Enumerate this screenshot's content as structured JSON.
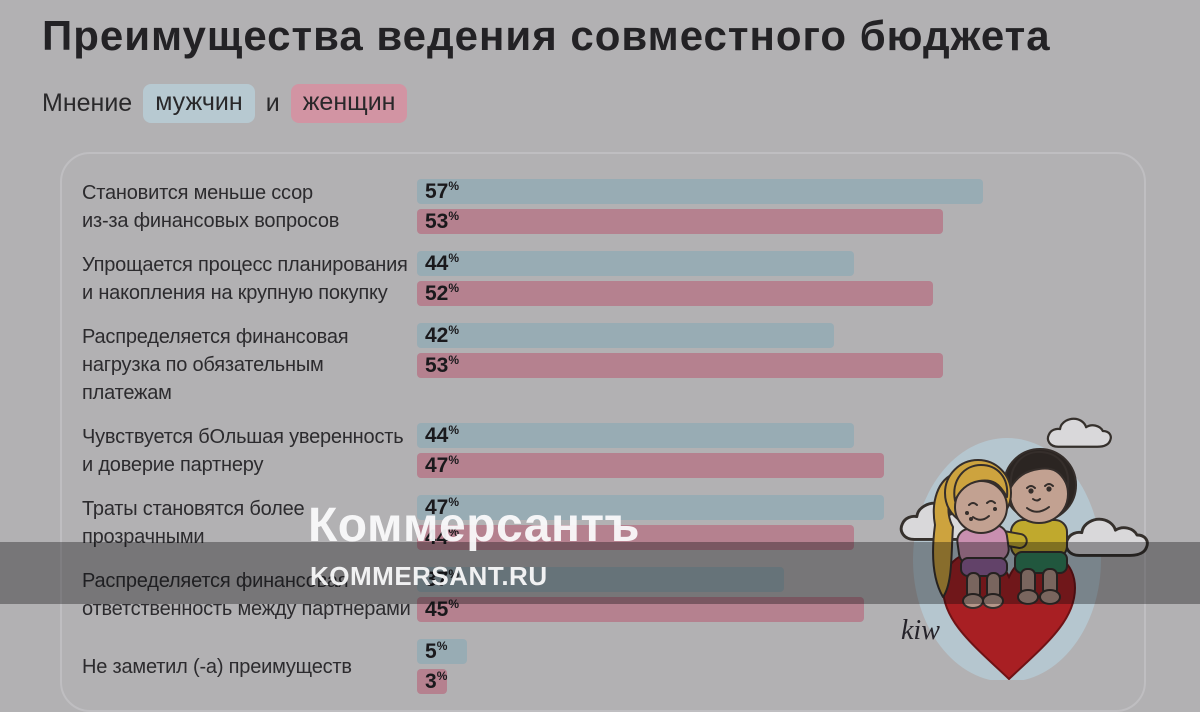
{
  "header": {
    "title": "Преимущества ведения совместного бюджета",
    "subtitle": {
      "prefix": "Мнение",
      "legend_male": "мужчин",
      "connector": "и",
      "legend_female": "женщин"
    }
  },
  "watermark": {
    "logo": "Коммерсантъ",
    "url": "KOMMERSANT.RU"
  },
  "illustration": {
    "signature": "kiw"
  },
  "chart_data": {
    "type": "bar",
    "orientation": "horizontal",
    "unit": "%",
    "title": "Преимущества ведения совместного бюджета",
    "legend_position": "top",
    "grid": false,
    "value_labels": "inside-left",
    "xlim": [
      0,
      74
    ],
    "categories": [
      [
        "Становится меньше ссор",
        "из-за финансовых вопросов"
      ],
      [
        "Упрощается процесс планирования",
        "и накопления на крупную покупку"
      ],
      [
        "Распределяется финансовая",
        "нагрузка по обязательным платежам"
      ],
      [
        "Чувствуется бОльшая уверенность",
        "и доверие партнеру"
      ],
      [
        "Траты становятся более",
        "прозрачными"
      ],
      [
        "Распределяется финансовая",
        "ответственность между партнерами"
      ],
      [
        "Не заметил (-а) преимуществ"
      ]
    ],
    "series": [
      {
        "name": "мужчин",
        "color": "#98acb4",
        "values": [
          57,
          44,
          42,
          44,
          47,
          37,
          5
        ]
      },
      {
        "name": "женщин",
        "color": "#b5818f",
        "values": [
          53,
          52,
          53,
          47,
          44,
          45,
          3
        ]
      }
    ]
  },
  "colors": {
    "background": "#b2b1b3",
    "male_bar": "#98acb4",
    "female_bar": "#b5818f",
    "male_chip": "#b7c9d1",
    "female_chip": "#d294a3",
    "band": "rgba(10,10,12,0.35)",
    "heart": "#a81f23"
  }
}
